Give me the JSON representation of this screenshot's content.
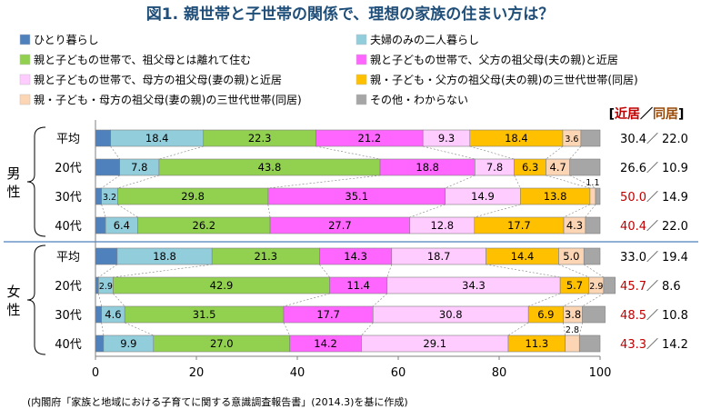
{
  "chart_data": {
    "type": "bar",
    "stacked": "horizontal-100",
    "title": "図1. 親世帯と子世帯の関係で、理想の家族の住まい方は？",
    "xlim": [
      0,
      100
    ],
    "xticks": [
      0,
      20,
      40,
      60,
      80,
      100
    ],
    "grid": false,
    "legend_position": "top",
    "source": "(内閣府「家族と地域における子育てに関する意識調査報告書」(2014.3)を基に作成)",
    "side_header": {
      "bracket_open": "[",
      "near": "近居",
      "slash": "／",
      "same": "同居",
      "bracket_close": "]"
    },
    "series": [
      {
        "name": "ひとり暮らし",
        "color": "#4f81bd",
        "values": [
          3.0,
          4.8,
          1.2,
          2.0,
          4.3,
          0.6,
          1.2,
          1.6
        ]
      },
      {
        "name": "夫婦のみの二人暮らし",
        "color": "#92cddc",
        "values": [
          18.4,
          7.8,
          3.2,
          6.4,
          18.8,
          2.9,
          4.6,
          9.9
        ]
      },
      {
        "name": "親と子どもの世帯で、祖父母とは離れて住む",
        "color": "#92d050",
        "values": [
          22.3,
          43.8,
          29.8,
          26.2,
          21.3,
          42.9,
          31.5,
          27.0
        ]
      },
      {
        "name": "親と子どもの世帯で、父方の祖父母(夫の親)と近居",
        "color": "#ff66ff",
        "values": [
          21.2,
          18.8,
          35.1,
          27.7,
          14.3,
          11.4,
          17.7,
          14.2
        ]
      },
      {
        "name": "親と子どもの世帯で、母方の祖父母(妻の親)と近居",
        "color": "#ffccff",
        "values": [
          9.3,
          7.8,
          14.9,
          12.8,
          18.7,
          34.3,
          30.8,
          29.1
        ]
      },
      {
        "name": "親・子ども・父方の祖父母(夫の親)の三世代世帯(同居)",
        "color": "#ffc000",
        "values": [
          18.4,
          6.3,
          13.8,
          17.7,
          14.4,
          5.7,
          6.9,
          11.3
        ]
      },
      {
        "name": "親・子ども・母方の祖父母(妻の親)の三世代世帯(同居)",
        "color": "#fcd5b4",
        "values": [
          3.6,
          4.7,
          1.1,
          4.3,
          5.0,
          2.9,
          3.8,
          2.8
        ]
      },
      {
        "name": "その他・わからない",
        "color": "#a6a6a6",
        "values": [
          3.8,
          6.0,
          0.9,
          2.9,
          3.2,
          2.3,
          4.5,
          4.1
        ]
      }
    ],
    "labels": [
      [
        "",
        "18.4",
        "22.3",
        "21.2",
        "9.3",
        "18.4",
        "3.6",
        ""
      ],
      [
        "",
        "7.8",
        "43.8",
        "18.8",
        "7.8",
        "6.3",
        "4.7",
        ""
      ],
      [
        "",
        "3.2",
        "29.8",
        "35.1",
        "14.9",
        "13.8",
        "1.1",
        ""
      ],
      [
        "",
        "6.4",
        "26.2",
        "27.7",
        "12.8",
        "17.7",
        "4.3",
        ""
      ],
      [
        "",
        "18.8",
        "21.3",
        "14.3",
        "18.7",
        "14.4",
        "5.0",
        ""
      ],
      [
        "",
        "2.9",
        "42.9",
        "11.4",
        "34.3",
        "5.7",
        "2.9",
        ""
      ],
      [
        "",
        "4.6",
        "31.5",
        "17.7",
        "30.8",
        "6.9",
        "3.8",
        ""
      ],
      [
        "",
        "9.9",
        "27.0",
        "14.2",
        "29.1",
        "11.3",
        "2.8",
        ""
      ]
    ],
    "groups": [
      {
        "name": "男性",
        "chars": [
          "男",
          "性"
        ],
        "rows": [
          0,
          1,
          2,
          3
        ]
      },
      {
        "name": "女性",
        "chars": [
          "女",
          "性"
        ],
        "rows": [
          4,
          5,
          6,
          7
        ]
      }
    ],
    "rows": [
      {
        "category": "平均",
        "near": "30.4",
        "same": "22.0",
        "near_red": false
      },
      {
        "category": "20代",
        "near": "26.6",
        "same": "10.9",
        "near_red": false
      },
      {
        "category": "30代",
        "near": "50.0",
        "same": "14.9",
        "near_red": true
      },
      {
        "category": "40代",
        "near": "40.4",
        "same": "22.0",
        "near_red": true
      },
      {
        "category": "平均",
        "near": "33.0",
        "same": "19.4",
        "near_red": false
      },
      {
        "category": "20代",
        "near": "45.7",
        "same": "8.6",
        "near_red": true
      },
      {
        "category": "30代",
        "near": "48.5",
        "same": "10.8",
        "near_red": true
      },
      {
        "category": "40代",
        "near": "43.3",
        "same": "14.2",
        "near_red": true
      }
    ],
    "colors": {
      "title": "#1f4e79",
      "red": "#c00000",
      "brown": "#984807",
      "axis": "#7f7f7f",
      "sep": "#4f81bd"
    }
  }
}
